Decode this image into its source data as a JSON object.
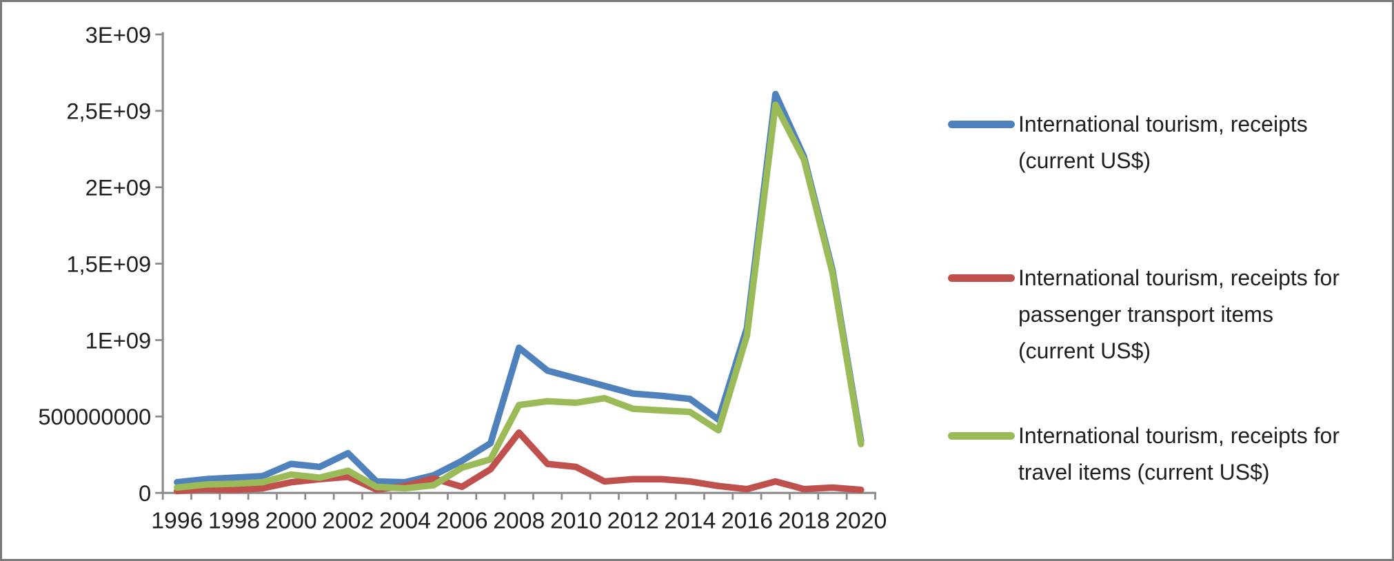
{
  "chart_data": {
    "type": "line",
    "title": "",
    "grid": false,
    "legend_position": "right",
    "axis_color": "#8C8C8C",
    "categories": [
      1996,
      1997,
      1998,
      1999,
      2000,
      2001,
      2002,
      2003,
      2004,
      2005,
      2006,
      2007,
      2008,
      2009,
      2010,
      2011,
      2012,
      2013,
      2014,
      2015,
      2016,
      2017,
      2018,
      2019,
      2020
    ],
    "x_axis": {
      "tick_labels": [
        "1996",
        "1998",
        "2000",
        "2002",
        "2004",
        "2006",
        "2008",
        "2010",
        "2012",
        "2014",
        "2016",
        "2018",
        "2020"
      ],
      "tick_label_years": [
        1996,
        1998,
        2000,
        2002,
        2004,
        2006,
        2008,
        2010,
        2012,
        2014,
        2016,
        2018,
        2020
      ]
    },
    "y_axis": {
      "min": 0,
      "max": 3000000000,
      "tick_step": 500000000,
      "ticks": [
        {
          "value": 0,
          "label": "0"
        },
        {
          "value": 500000000,
          "label": "500000000"
        },
        {
          "value": 1000000000,
          "label": "1E+09"
        },
        {
          "value": 1500000000,
          "label": "1,5E+09"
        },
        {
          "value": 2000000000,
          "label": "2E+09"
        },
        {
          "value": 2500000000,
          "label": "2,5E+09"
        },
        {
          "value": 3000000000,
          "label": "3E+09"
        }
      ]
    },
    "series": [
      {
        "legend_label": "International tourism, receipts\n(current US$)",
        "color": "#4F81BD",
        "values": [
          70000000,
          90000000,
          100000000,
          110000000,
          190000000,
          170000000,
          260000000,
          75000000,
          70000000,
          115000000,
          210000000,
          325000000,
          950000000,
          800000000,
          750000000,
          700000000,
          650000000,
          635000000,
          615000000,
          480000000,
          1080000000,
          2610000000,
          2200000000,
          1460000000,
          340000000
        ]
      },
      {
        "legend_label": "International tourism, receipts for\npassenger transport items\n(current US$)",
        "color": "#C0504D",
        "values": [
          12000000,
          24000000,
          20000000,
          30000000,
          70000000,
          90000000,
          105000000,
          22000000,
          45000000,
          95000000,
          40000000,
          155000000,
          395000000,
          190000000,
          170000000,
          75000000,
          90000000,
          90000000,
          75000000,
          45000000,
          25000000,
          75000000,
          25000000,
          35000000,
          20000000
        ]
      },
      {
        "legend_label": "International tourism, receipts for\ntravel items (current US$)",
        "color": "#9BBB59",
        "values": [
          35000000,
          55000000,
          60000000,
          70000000,
          120000000,
          100000000,
          145000000,
          40000000,
          30000000,
          50000000,
          165000000,
          220000000,
          575000000,
          600000000,
          590000000,
          620000000,
          550000000,
          540000000,
          530000000,
          410000000,
          1030000000,
          2540000000,
          2180000000,
          1440000000,
          320000000
        ]
      }
    ]
  }
}
